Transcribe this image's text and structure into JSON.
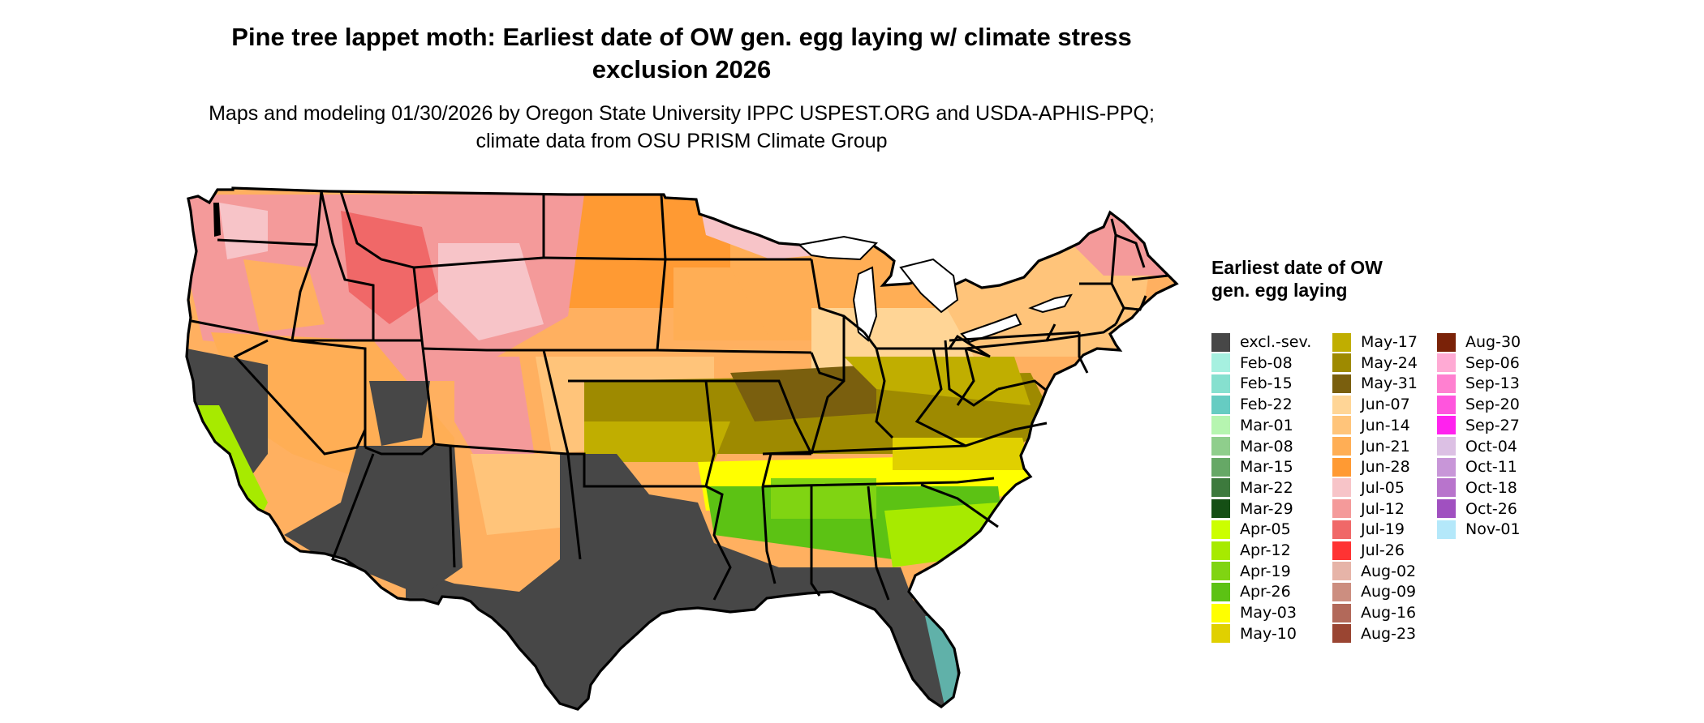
{
  "map": {
    "title": "Pine tree lappet moth: Earliest date of OW gen. egg laying w/ climate stress exclusion 2026",
    "subtitle": "Maps and modeling 01/30/2026 by Oregon State University IPPC USPEST.ORG and USDA-APHIS-PPQ; climate data from OSU PRISM Climate Group",
    "region": "Conterminous United States",
    "colors": {
      "excluded": "#474747",
      "state_border": "#000000",
      "background": "#ffffff"
    }
  },
  "legend": {
    "title": "Earliest date of OW gen. egg laying",
    "items": [
      {
        "label": "excl.-sev.",
        "color": "#474747"
      },
      {
        "label": "Feb-08",
        "color": "#a6f0e0"
      },
      {
        "label": "Feb-15",
        "color": "#86e0cf"
      },
      {
        "label": "Feb-22",
        "color": "#66ccc2"
      },
      {
        "label": "Mar-01",
        "color": "#b6f5b0"
      },
      {
        "label": "Mar-08",
        "color": "#8fce8c"
      },
      {
        "label": "Mar-15",
        "color": "#66a866"
      },
      {
        "label": "Mar-22",
        "color": "#3d7a3d"
      },
      {
        "label": "Mar-29",
        "color": "#154f15"
      },
      {
        "label": "Apr-05",
        "color": "#ccff00"
      },
      {
        "label": "Apr-12",
        "color": "#a7ea00"
      },
      {
        "label": "Apr-19",
        "color": "#80d412"
      },
      {
        "label": "Apr-26",
        "color": "#5cc214"
      },
      {
        "label": "May-03",
        "color": "#ffff00"
      },
      {
        "label": "May-10",
        "color": "#e0d000"
      },
      {
        "label": "May-17",
        "color": "#c0ae00"
      },
      {
        "label": "May-24",
        "color": "#9e8a00"
      },
      {
        "label": "May-31",
        "color": "#7a5f0e"
      },
      {
        "label": "Jun-07",
        "color": "#ffd596"
      },
      {
        "label": "Jun-14",
        "color": "#ffc47a"
      },
      {
        "label": "Jun-21",
        "color": "#ffae55"
      },
      {
        "label": "Jun-28",
        "color": "#ff9a33"
      },
      {
        "label": "Jul-05",
        "color": "#f7c4c8"
      },
      {
        "label": "Jul-12",
        "color": "#f49a9a"
      },
      {
        "label": "Jul-19",
        "color": "#f06868"
      },
      {
        "label": "Jul-26",
        "color": "#ff3333"
      },
      {
        "label": "Aug-02",
        "color": "#e6b4a8"
      },
      {
        "label": "Aug-09",
        "color": "#cc8e80"
      },
      {
        "label": "Aug-16",
        "color": "#b2695a"
      },
      {
        "label": "Aug-23",
        "color": "#9a4532"
      },
      {
        "label": "Aug-30",
        "color": "#7a2208"
      },
      {
        "label": "Sep-06",
        "color": "#ffaad4"
      },
      {
        "label": "Sep-13",
        "color": "#ff80d0"
      },
      {
        "label": "Sep-20",
        "color": "#ff55dd"
      },
      {
        "label": "Sep-27",
        "color": "#ff22ee"
      },
      {
        "label": "Oct-04",
        "color": "#dcc0e4"
      },
      {
        "label": "Oct-11",
        "color": "#c896d8"
      },
      {
        "label": "Oct-18",
        "color": "#b874cc"
      },
      {
        "label": "Oct-26",
        "color": "#a050c0"
      },
      {
        "label": "Nov-01",
        "color": "#b4e8fa"
      }
    ]
  }
}
